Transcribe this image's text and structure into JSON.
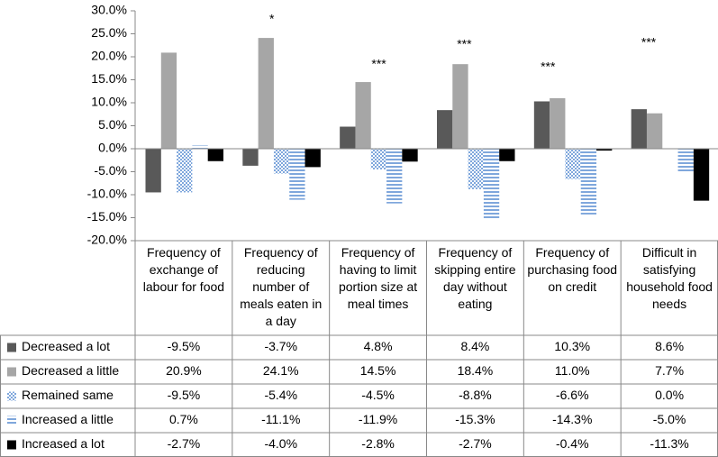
{
  "chart_data": {
    "type": "bar",
    "categories": [
      "Frequency of exchange of labour for food",
      "Frequency of reducing number of meals eaten in a day",
      "Frequency of having to limit portion size at meal times",
      "Frequency of skipping entire day without eating",
      "Frequency of purchasing food on credit",
      "Difficult in satisfying household food needs"
    ],
    "annotations": [
      null,
      "*",
      "***",
      "***",
      "***",
      "***"
    ],
    "series": [
      {
        "name": "Decreased a lot",
        "color": "#595959",
        "values": [
          -9.5,
          -3.7,
          4.8,
          8.4,
          10.3,
          8.6
        ],
        "value_labels": [
          "-9.5%",
          "-3.7%",
          "4.8%",
          "8.4%",
          "10.3%",
          "8.6%"
        ]
      },
      {
        "name": "Decreased a little",
        "color": "#a6a6a6",
        "values": [
          20.9,
          24.1,
          14.5,
          18.4,
          11.0,
          7.7
        ],
        "value_labels": [
          "20.9%",
          "24.1%",
          "14.5%",
          "18.4%",
          "11.0%",
          "7.7%"
        ]
      },
      {
        "name": "Remained same",
        "color": "#7fa7dc",
        "pattern": "checker",
        "values": [
          -9.5,
          -5.4,
          -4.5,
          -8.8,
          -6.6,
          0.0
        ],
        "value_labels": [
          "-9.5%",
          "-5.4%",
          "-4.5%",
          "-8.8%",
          "-6.6%",
          "0.0%"
        ]
      },
      {
        "name": "Increased a little",
        "color": "#7fa7dc",
        "pattern": "stripes",
        "values": [
          0.7,
          -11.1,
          -11.9,
          -15.3,
          -14.3,
          -5.0
        ],
        "value_labels": [
          "0.7%",
          "-11.1%",
          "-11.9%",
          "-15.3%",
          "-14.3%",
          "-5.0%"
        ]
      },
      {
        "name": "Increased a lot",
        "color": "#000000",
        "values": [
          -2.7,
          -4.0,
          -2.8,
          -2.7,
          -0.4,
          -11.3
        ],
        "value_labels": [
          "-2.7%",
          "-4.0%",
          "-2.8%",
          "-2.7%",
          "-0.4%",
          "-11.3%"
        ]
      }
    ],
    "ylim": [
      -20,
      30
    ],
    "yticks": [
      {
        "value": -20,
        "label": "-20.0%"
      },
      {
        "value": -15,
        "label": "-15.0%"
      },
      {
        "value": -10,
        "label": "-10.0%"
      },
      {
        "value": -5,
        "label": "-5.0%"
      },
      {
        "value": 0,
        "label": "0.0%"
      },
      {
        "value": 5,
        "label": "5.0%"
      },
      {
        "value": 10,
        "label": "10.0%"
      },
      {
        "value": 15,
        "label": "15.0%"
      },
      {
        "value": 20,
        "label": "20.0%"
      },
      {
        "value": 25,
        "label": "25.0%"
      },
      {
        "value": 30,
        "label": "30.0%"
      }
    ]
  }
}
